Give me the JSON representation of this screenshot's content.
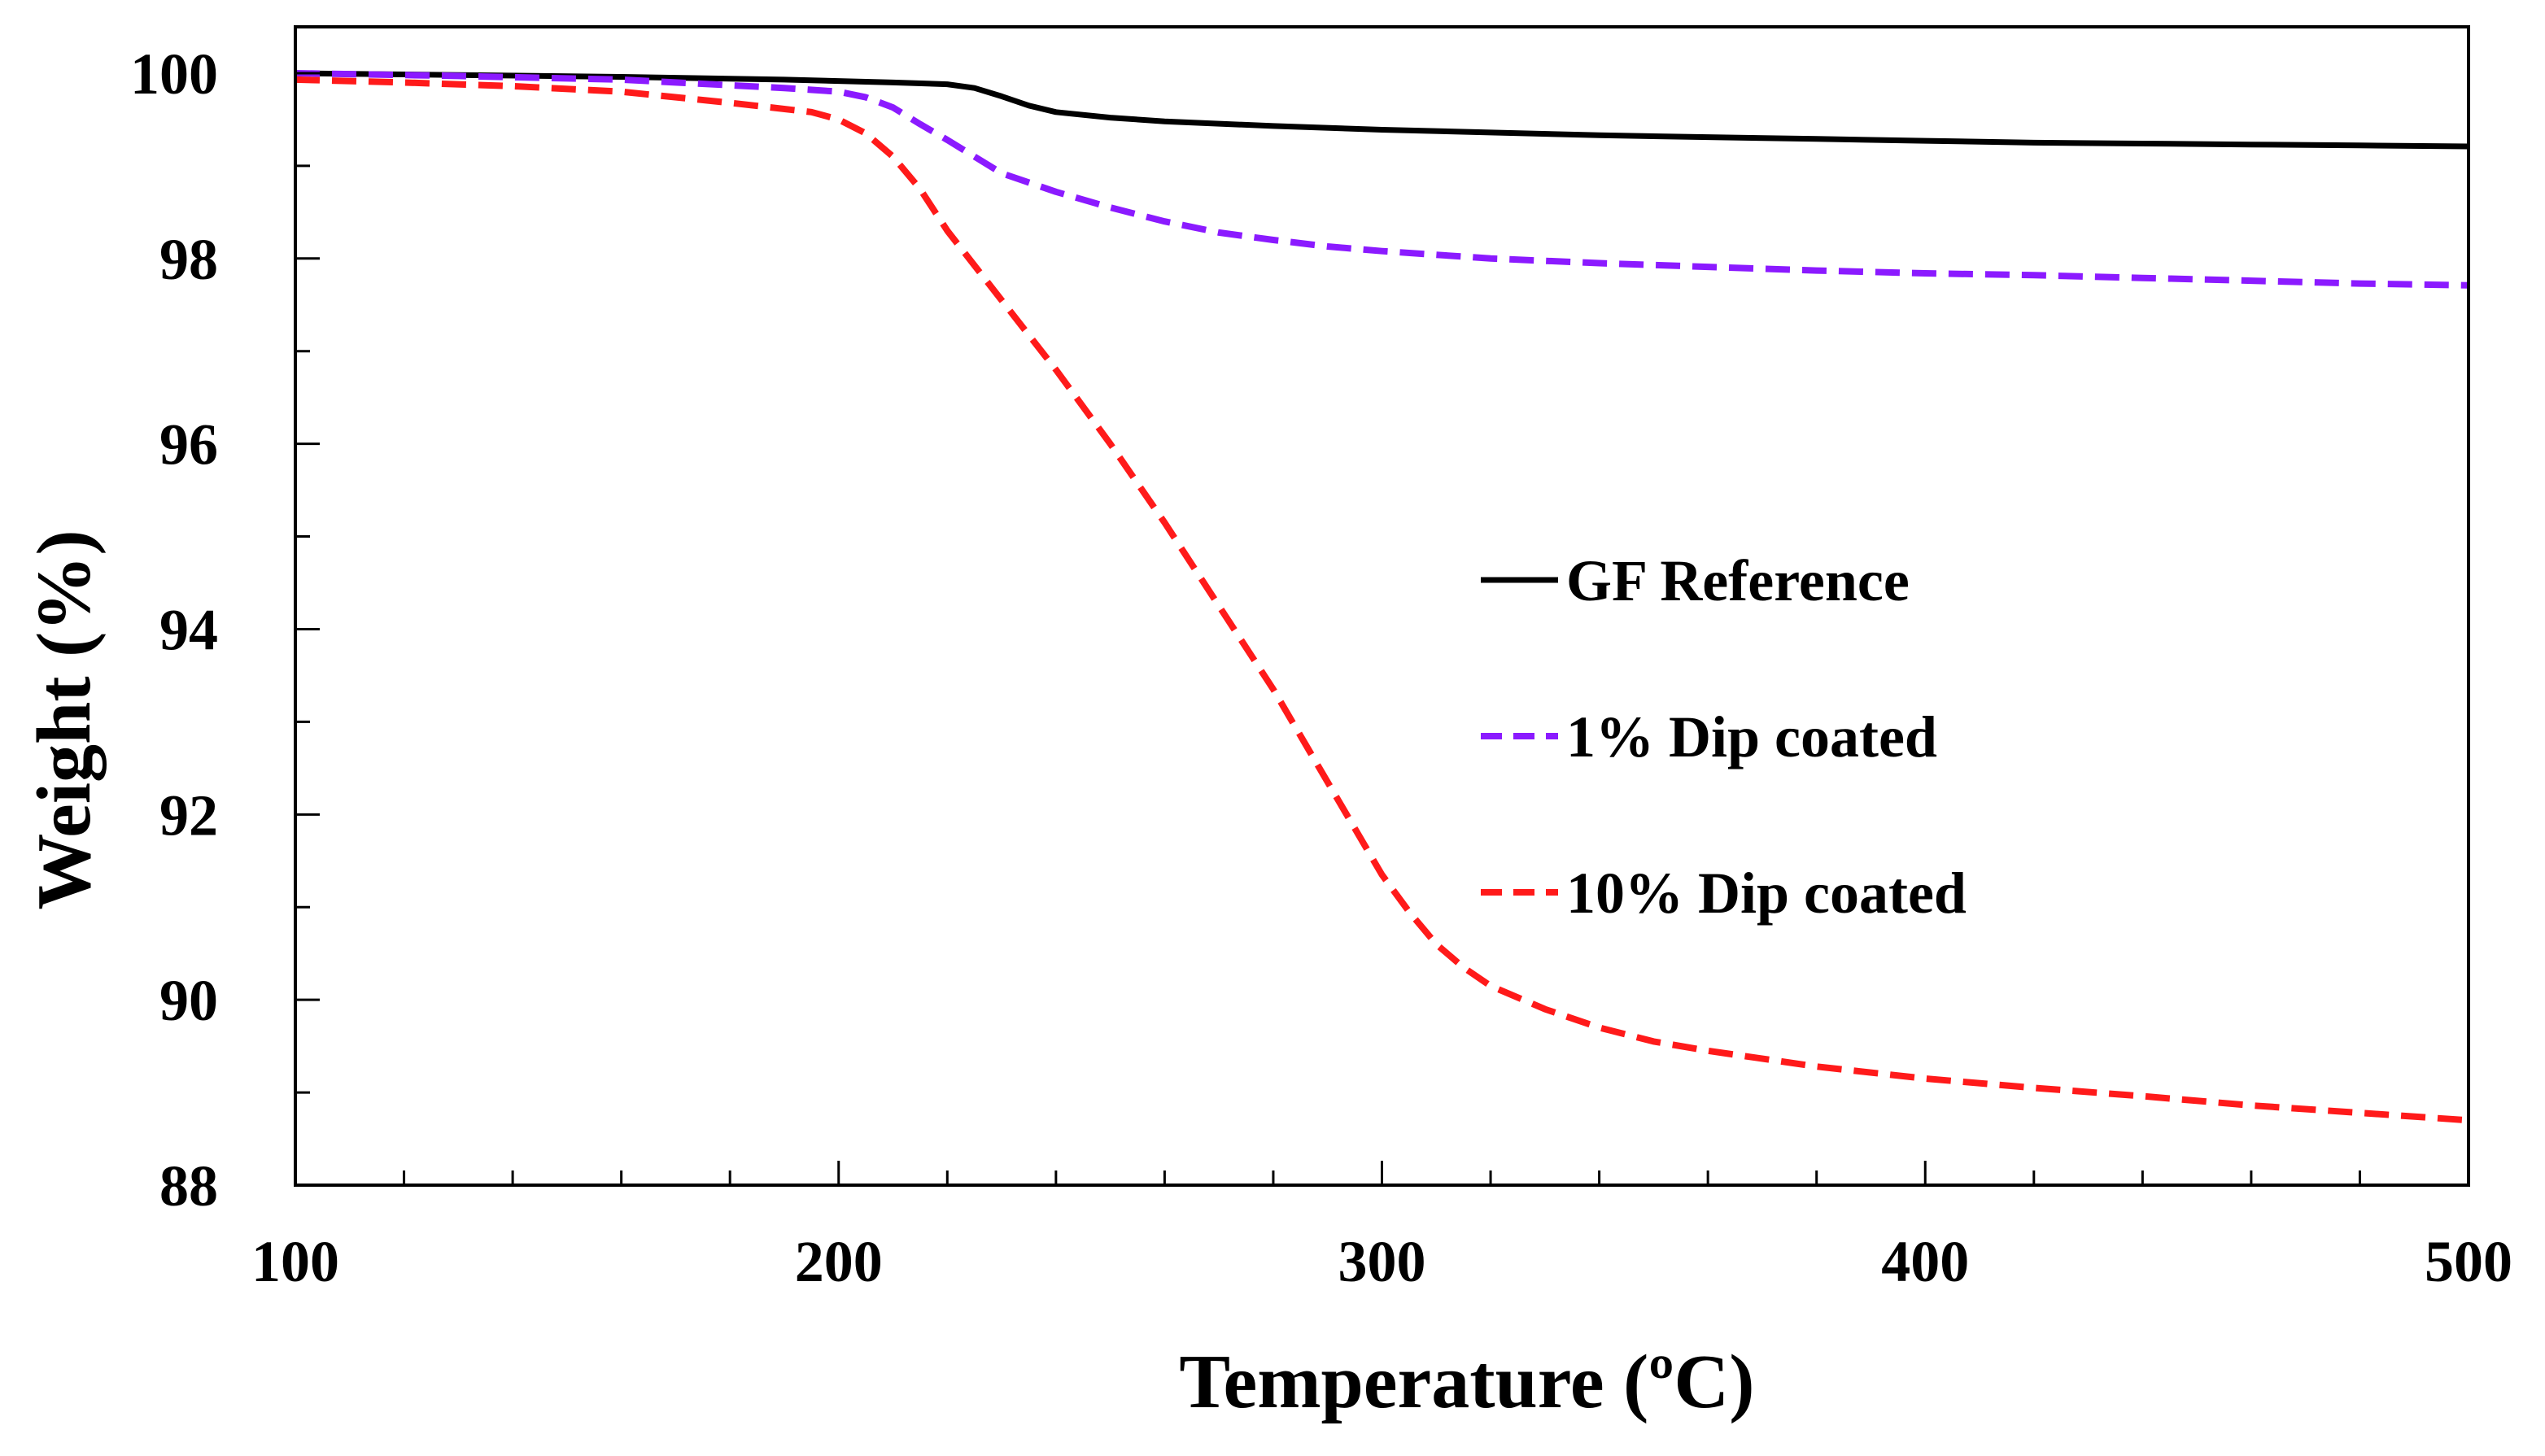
{
  "chart_data": {
    "type": "line",
    "title": "",
    "xlabel": "Temperature (ºC)",
    "ylabel": "Weight (%)",
    "xlim": [
      100,
      500
    ],
    "ylim": [
      88,
      100.5
    ],
    "xticks": [
      100,
      200,
      300,
      400,
      500
    ],
    "yticks": [
      88,
      90,
      92,
      94,
      96,
      98,
      100
    ],
    "x_minor_step": 20,
    "y_minor_step": 1,
    "grid": false,
    "legend_position": "right-center",
    "series": [
      {
        "name": "GF Reference",
        "color": "#000000",
        "style": "solid",
        "x": [
          100,
          130,
          160,
          190,
          210,
          220,
          225,
          230,
          235,
          240,
          250,
          260,
          280,
          300,
          320,
          340,
          360,
          380,
          400,
          420,
          440,
          460,
          480,
          500
        ],
        "y": [
          100.0,
          99.98,
          99.96,
          99.93,
          99.9,
          99.88,
          99.84,
          99.75,
          99.65,
          99.58,
          99.52,
          99.48,
          99.43,
          99.39,
          99.36,
          99.33,
          99.31,
          99.29,
          99.27,
          99.25,
          99.24,
          99.23,
          99.22,
          99.21
        ]
      },
      {
        "name": "1% Dip coated",
        "color": "#8B1AFF",
        "style": "dash",
        "x": [
          100,
          130,
          160,
          180,
          190,
          200,
          205,
          210,
          215,
          220,
          225,
          230,
          240,
          250,
          260,
          270,
          280,
          290,
          300,
          310,
          320,
          340,
          360,
          380,
          400,
          420,
          440,
          460,
          480,
          500
        ],
        "y": [
          100.0,
          99.97,
          99.93,
          99.87,
          99.84,
          99.8,
          99.74,
          99.63,
          99.45,
          99.28,
          99.1,
          98.92,
          98.72,
          98.55,
          98.4,
          98.28,
          98.2,
          98.13,
          98.08,
          98.04,
          98.0,
          97.95,
          97.91,
          97.87,
          97.84,
          97.82,
          97.79,
          97.76,
          97.73,
          97.71
        ]
      },
      {
        "name": "10% Dip coated",
        "color": "#FF1A1A",
        "style": "dash",
        "x": [
          100,
          120,
          140,
          160,
          180,
          195,
          200,
          205,
          210,
          215,
          220,
          230,
          240,
          250,
          260,
          270,
          280,
          290,
          300,
          305,
          310,
          315,
          320,
          330,
          340,
          350,
          360,
          380,
          400,
          420,
          440,
          460,
          480,
          500
        ],
        "y": [
          99.93,
          99.9,
          99.86,
          99.8,
          99.68,
          99.58,
          99.5,
          99.35,
          99.1,
          98.75,
          98.3,
          97.55,
          96.8,
          96.0,
          95.15,
          94.25,
          93.35,
          92.35,
          91.35,
          90.95,
          90.6,
          90.35,
          90.15,
          89.9,
          89.7,
          89.55,
          89.45,
          89.28,
          89.15,
          89.05,
          88.96,
          88.86,
          88.78,
          88.7
        ]
      }
    ]
  }
}
